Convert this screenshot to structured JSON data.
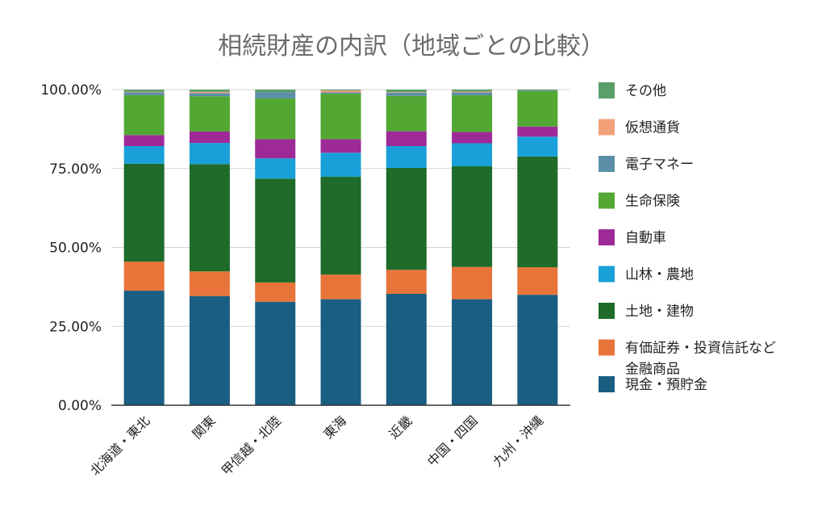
{
  "chart_data": {
    "type": "bar",
    "stacked": true,
    "percent": true,
    "title": "相続財産の内訳（地域ごとの比較）",
    "y_ticks": [
      "0.00%",
      "25.00%",
      "50.00%",
      "75.00%",
      "100.00%"
    ],
    "ylim": [
      0,
      100
    ],
    "grid": true,
    "legend_position": "right",
    "categories": [
      "北海道・東北",
      "関東",
      "甲信越・北陸",
      "東海",
      "近畿",
      "中国・四国",
      "九州・沖縄"
    ],
    "series": [
      {
        "name": "現金・預貯金",
        "color": "#1a5e82",
        "values": [
          36.3,
          34.6,
          32.8,
          33.6,
          35.3,
          33.6,
          35.0
        ]
      },
      {
        "name": "有価証券・投資信託など金融商品",
        "color": "#e9743a",
        "values": [
          9.2,
          7.8,
          6.1,
          7.8,
          7.6,
          10.2,
          8.7
        ]
      },
      {
        "name": "土地・建物",
        "color": "#1e6b2a",
        "values": [
          31.0,
          34.0,
          32.9,
          31.0,
          32.3,
          31.9,
          35.1
        ]
      },
      {
        "name": "山林・農地",
        "color": "#1aa0d8",
        "values": [
          5.6,
          6.7,
          6.4,
          7.6,
          6.9,
          7.3,
          6.3
        ]
      },
      {
        "name": "自動車",
        "color": "#9e2a98",
        "values": [
          3.5,
          3.6,
          6.1,
          4.3,
          4.7,
          3.6,
          3.2
        ]
      },
      {
        "name": "生命保険",
        "color": "#52a833",
        "values": [
          12.6,
          11.2,
          12.9,
          14.4,
          11.2,
          11.6,
          11.2
        ]
      },
      {
        "name": "電子マネー",
        "color": "#5b8fa8",
        "values": [
          0.9,
          1.0,
          2.0,
          0.4,
          1.0,
          0.9,
          0.2
        ]
      },
      {
        "name": "仮想通貨",
        "color": "#f2a078",
        "values": [
          0.2,
          0.4,
          0.0,
          0.6,
          0.2,
          0.3,
          0.0
        ]
      },
      {
        "name": "その他",
        "color": "#5a9e6a",
        "values": [
          0.7,
          0.7,
          0.8,
          0.3,
          0.8,
          0.6,
          0.3
        ]
      }
    ],
    "legend_order": [
      "その他",
      "仮想通貨",
      "電子マネー",
      "生命保険",
      "自動車",
      "山林・農地",
      "土地・建物",
      "有価証券・投資信託など金融商品",
      "現金・預貯金"
    ]
  }
}
